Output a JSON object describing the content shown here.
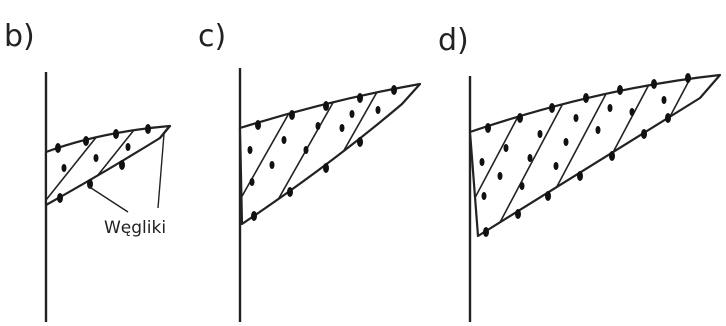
{
  "panels": [
    {
      "letter": "b)",
      "annotation": "Węgliki"
    },
    {
      "letter": "c)"
    },
    {
      "letter": "d)"
    }
  ],
  "colors": {
    "ink": "#222222",
    "carbide": "#111111",
    "background": "#ffffff"
  }
}
